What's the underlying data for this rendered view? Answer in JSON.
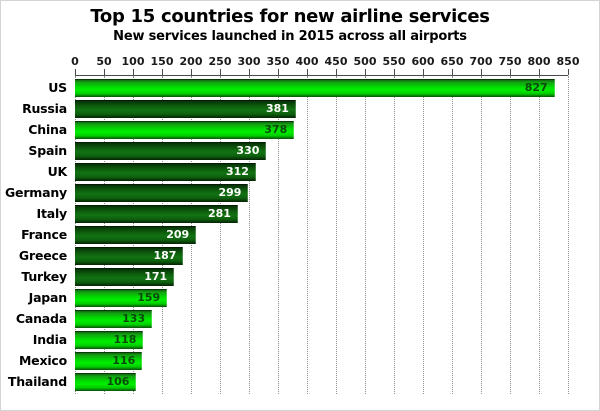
{
  "chart_data": {
    "type": "bar",
    "orientation": "horizontal",
    "title": "Top 15 countries for new airline services",
    "subtitle": "New services launched in 2015 across all airports",
    "categories": [
      "US",
      "Russia",
      "China",
      "Spain",
      "UK",
      "Germany",
      "Italy",
      "France",
      "Greece",
      "Turkey",
      "Japan",
      "Canada",
      "India",
      "Mexico",
      "Thailand"
    ],
    "values": [
      827,
      381,
      378,
      330,
      312,
      299,
      281,
      209,
      187,
      171,
      159,
      133,
      118,
      116,
      106
    ],
    "bar_styles": [
      "bright",
      "dark",
      "bright",
      "dark",
      "dark",
      "dark",
      "dark",
      "dark",
      "dark",
      "dark",
      "bright",
      "bright",
      "bright",
      "bright",
      "bright"
    ],
    "xlim": [
      0,
      850
    ],
    "x_ticks": [
      0,
      50,
      100,
      150,
      200,
      250,
      300,
      350,
      400,
      450,
      500,
      550,
      600,
      650,
      700,
      750,
      800,
      850
    ],
    "grid": "vertical-dotted",
    "legend": "none",
    "colors": {
      "bar_bright": "#00e600",
      "bar_dark": "#127312",
      "value_label_on_bright": "#0b4a0b",
      "value_label_on_dark": "#ffffff",
      "gridline": "#909090",
      "axis_line": "#4a4a4a",
      "text": "#000000"
    }
  }
}
